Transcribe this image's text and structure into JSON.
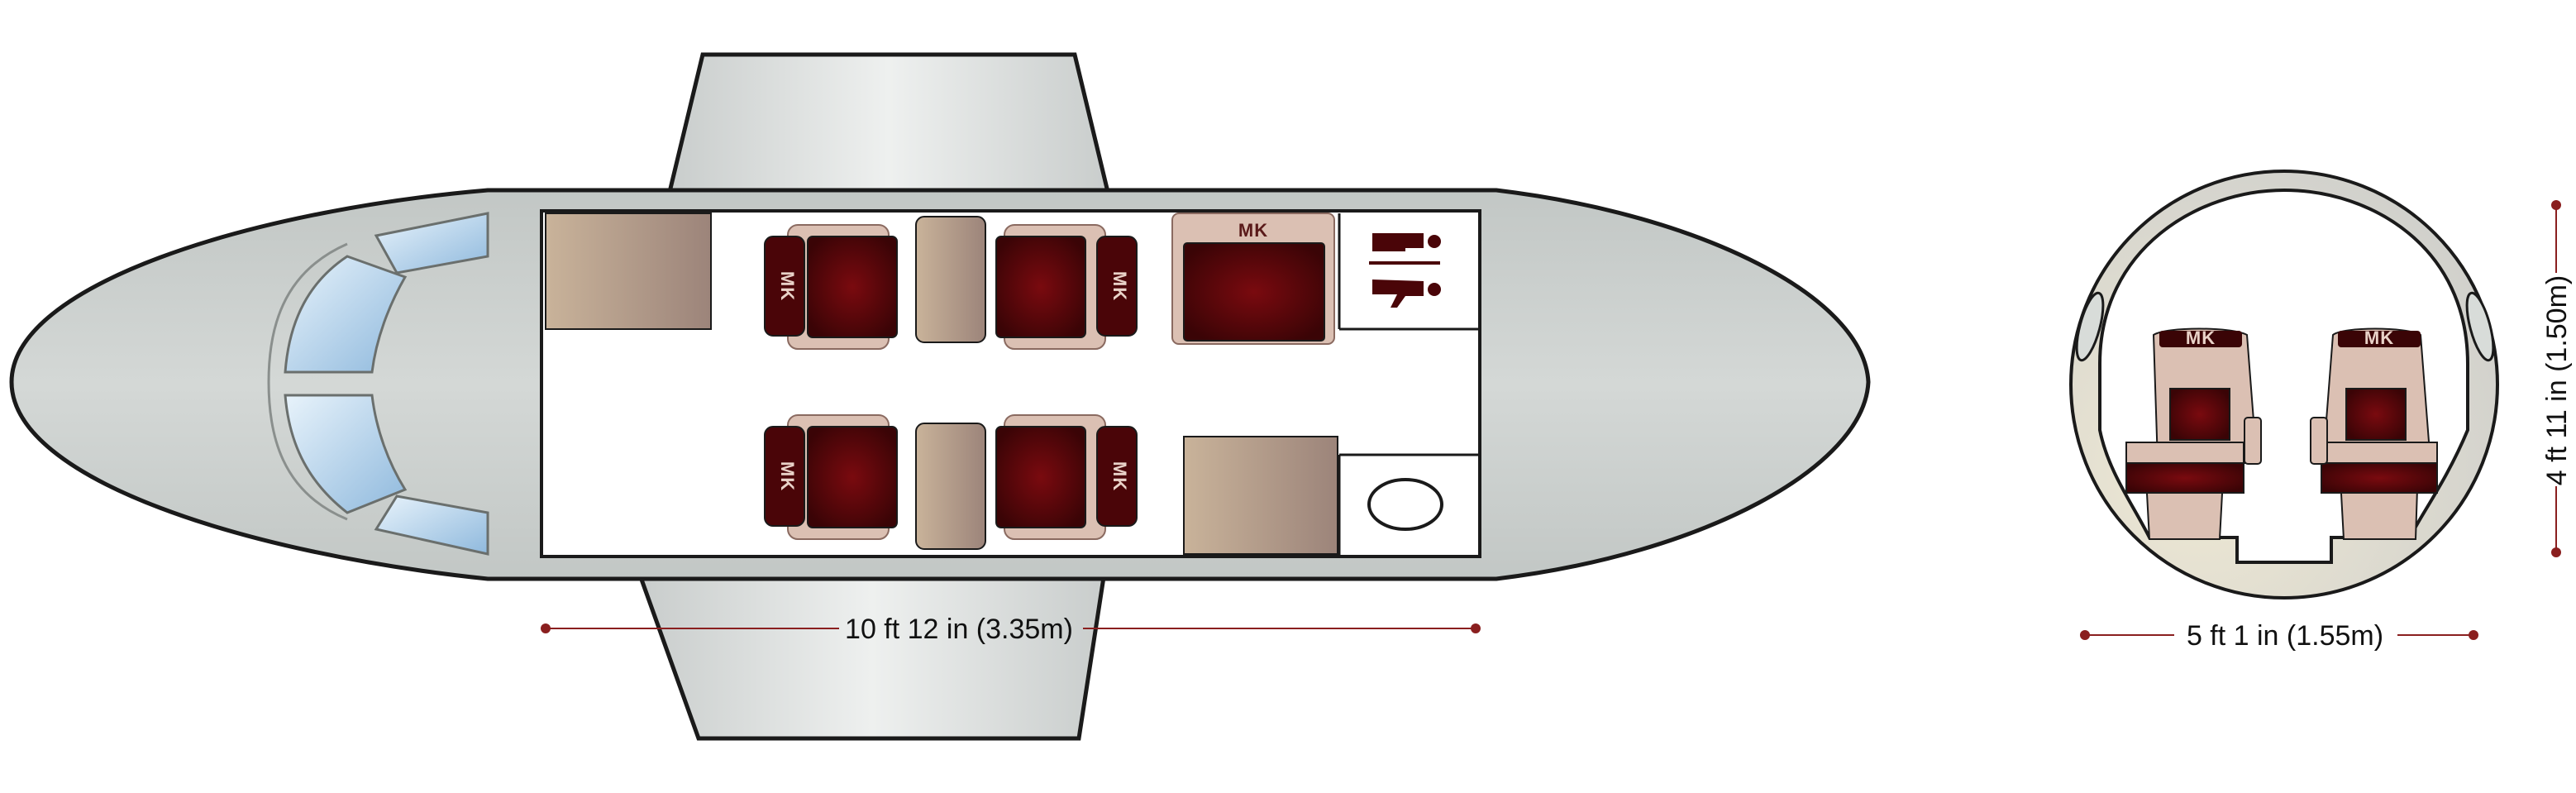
{
  "colors": {
    "fuselage": "#c5c9c7",
    "wing": "#e3e6e5",
    "outline": "#1a1a1a",
    "window": "#b9d6ec",
    "seat_dark": "#4a0508",
    "seat_frame": "#d9bcb0",
    "table": "#a88e80",
    "dimension": "#8a1f1f"
  },
  "icons": [
    "aircraft-top-view",
    "seat-icon",
    "table-icon",
    "lavatory-icon",
    "sink-icon",
    "fuselage-cross-section"
  ],
  "seat_logo": "MK",
  "dimensions": {
    "cabin_length": "10 ft 12 in (3.35m)",
    "cabin_width": "5 ft 1 in (1.55m)",
    "cabin_height": "4 ft 11 in (1.50m)"
  }
}
